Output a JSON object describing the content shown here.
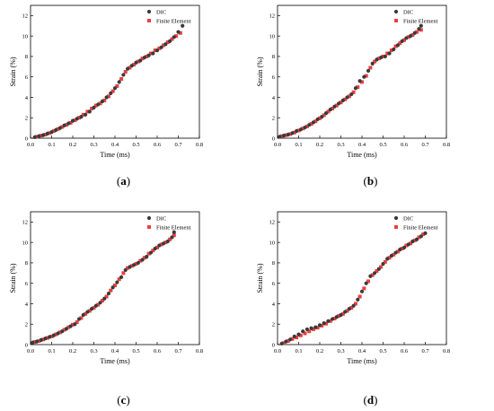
{
  "colors": {
    "dic": "#3a3a3a",
    "fe": "#e8403f"
  },
  "chart_data": [
    {
      "type": "scatter",
      "caption": "a",
      "xlabel": "Time (ms)",
      "ylabel": "Strain (%)",
      "xlim": [
        0,
        0.8
      ],
      "ylim": [
        0,
        13
      ],
      "xticks": [
        "0.0",
        "0.1",
        "0.2",
        "0.3",
        "0.4",
        "0.5",
        "0.6",
        "0.7",
        "0.8"
      ],
      "yticks": [
        "0",
        "2",
        "4",
        "6",
        "8",
        "10",
        "12"
      ],
      "legend": "top-right",
      "series": [
        {
          "name": "DIC",
          "marker": "circle",
          "x": [
            0.02,
            0.04,
            0.06,
            0.08,
            0.1,
            0.12,
            0.14,
            0.16,
            0.18,
            0.2,
            0.22,
            0.24,
            0.26,
            0.28,
            0.3,
            0.32,
            0.34,
            0.36,
            0.38,
            0.4,
            0.42,
            0.44,
            0.46,
            0.48,
            0.5,
            0.52,
            0.54,
            0.56,
            0.58,
            0.6,
            0.62,
            0.64,
            0.66,
            0.68,
            0.7,
            0.72
          ],
          "y": [
            0.1,
            0.2,
            0.3,
            0.45,
            0.6,
            0.8,
            1.0,
            1.25,
            1.45,
            1.7,
            1.9,
            2.1,
            2.3,
            2.6,
            3.0,
            3.3,
            3.6,
            4.0,
            4.4,
            4.9,
            5.5,
            6.2,
            6.8,
            7.1,
            7.4,
            7.6,
            7.9,
            8.1,
            8.3,
            8.6,
            8.9,
            9.2,
            9.5,
            9.9,
            10.4,
            11.0
          ]
        },
        {
          "name": "Finite Element",
          "marker": "square",
          "x": [
            0.03,
            0.05,
            0.07,
            0.09,
            0.11,
            0.13,
            0.15,
            0.17,
            0.19,
            0.21,
            0.23,
            0.25,
            0.27,
            0.29,
            0.31,
            0.33,
            0.35,
            0.37,
            0.39,
            0.41,
            0.43,
            0.45,
            0.47,
            0.49,
            0.51,
            0.53,
            0.55,
            0.57,
            0.59,
            0.61,
            0.63,
            0.65,
            0.67,
            0.69,
            0.71
          ],
          "y": [
            0.15,
            0.25,
            0.35,
            0.5,
            0.7,
            0.9,
            1.1,
            1.3,
            1.5,
            1.75,
            2.0,
            2.3,
            2.6,
            2.9,
            3.2,
            3.4,
            3.7,
            4.1,
            4.6,
            5.1,
            5.8,
            6.5,
            6.9,
            7.2,
            7.5,
            7.8,
            8.0,
            8.3,
            8.6,
            8.8,
            9.1,
            9.4,
            9.7,
            10.0,
            10.3
          ]
        }
      ]
    },
    {
      "type": "scatter",
      "caption": "b",
      "xlabel": "Time (ms)",
      "ylabel": "Strain (%)",
      "xlim": [
        0,
        0.8
      ],
      "ylim": [
        0,
        13
      ],
      "xticks": [
        "0.0",
        "0.1",
        "0.2",
        "0.3",
        "0.4",
        "0.5",
        "0.6",
        "0.7",
        "0.8"
      ],
      "yticks": [
        "0",
        "2",
        "4",
        "6",
        "8",
        "10",
        "12"
      ],
      "legend": "top-right",
      "series": [
        {
          "name": "DIC",
          "marker": "circle",
          "x": [
            0.01,
            0.03,
            0.05,
            0.07,
            0.09,
            0.11,
            0.13,
            0.15,
            0.17,
            0.19,
            0.21,
            0.23,
            0.25,
            0.27,
            0.29,
            0.31,
            0.33,
            0.35,
            0.37,
            0.39,
            0.41,
            0.43,
            0.45,
            0.47,
            0.49,
            0.51,
            0.53,
            0.55,
            0.57,
            0.59,
            0.61,
            0.63,
            0.65,
            0.67,
            0.68
          ],
          "y": [
            0.15,
            0.25,
            0.35,
            0.5,
            0.7,
            0.85,
            1.05,
            1.3,
            1.55,
            1.85,
            2.1,
            2.45,
            2.8,
            3.1,
            3.4,
            3.7,
            4.0,
            4.3,
            4.9,
            5.6,
            6.0,
            6.6,
            7.3,
            7.7,
            7.9,
            8.0,
            8.3,
            8.7,
            9.1,
            9.5,
            9.8,
            10.0,
            10.3,
            10.7,
            11.0
          ]
        },
        {
          "name": "Finite Element",
          "marker": "square",
          "x": [
            0.02,
            0.04,
            0.06,
            0.08,
            0.1,
            0.12,
            0.14,
            0.16,
            0.18,
            0.2,
            0.22,
            0.24,
            0.26,
            0.28,
            0.3,
            0.32,
            0.34,
            0.36,
            0.38,
            0.4,
            0.42,
            0.44,
            0.46,
            0.48,
            0.5,
            0.52,
            0.54,
            0.56,
            0.58,
            0.6,
            0.62,
            0.64,
            0.66,
            0.68
          ],
          "y": [
            0.2,
            0.3,
            0.4,
            0.55,
            0.75,
            0.95,
            1.15,
            1.4,
            1.65,
            1.95,
            2.25,
            2.6,
            2.9,
            3.2,
            3.5,
            3.8,
            4.1,
            4.5,
            5.0,
            5.5,
            6.1,
            6.9,
            7.5,
            7.8,
            8.0,
            8.3,
            8.6,
            9.0,
            9.3,
            9.6,
            9.9,
            10.1,
            10.4,
            10.6
          ]
        }
      ]
    },
    {
      "type": "scatter",
      "caption": "c",
      "xlabel": "Time (ms)",
      "ylabel": "Strain (%)",
      "xlim": [
        0,
        0.8
      ],
      "ylim": [
        0,
        13
      ],
      "xticks": [
        "0.0",
        "0.1",
        "0.2",
        "0.3",
        "0.4",
        "0.5",
        "0.6",
        "0.7",
        "0.8"
      ],
      "yticks": [
        "0",
        "2",
        "4",
        "6",
        "8",
        "10",
        "12"
      ],
      "legend": "top-right",
      "series": [
        {
          "name": "DIC",
          "marker": "circle",
          "x": [
            0.01,
            0.03,
            0.05,
            0.07,
            0.09,
            0.11,
            0.13,
            0.15,
            0.17,
            0.19,
            0.21,
            0.23,
            0.25,
            0.27,
            0.29,
            0.31,
            0.33,
            0.35,
            0.37,
            0.39,
            0.41,
            0.43,
            0.45,
            0.47,
            0.49,
            0.51,
            0.53,
            0.55,
            0.57,
            0.59,
            0.61,
            0.63,
            0.65,
            0.67,
            0.68
          ],
          "y": [
            0.2,
            0.3,
            0.45,
            0.6,
            0.75,
            0.9,
            1.1,
            1.3,
            1.55,
            1.8,
            2.0,
            2.5,
            2.9,
            3.2,
            3.5,
            3.8,
            4.1,
            4.5,
            5.0,
            5.6,
            6.1,
            6.6,
            7.3,
            7.6,
            7.8,
            8.0,
            8.3,
            8.6,
            9.0,
            9.4,
            9.7,
            9.9,
            10.1,
            10.5,
            11.0
          ]
        },
        {
          "name": "Finite Element",
          "marker": "square",
          "x": [
            0.02,
            0.04,
            0.06,
            0.08,
            0.1,
            0.12,
            0.14,
            0.16,
            0.18,
            0.2,
            0.22,
            0.24,
            0.26,
            0.28,
            0.3,
            0.32,
            0.34,
            0.36,
            0.38,
            0.4,
            0.42,
            0.44,
            0.46,
            0.48,
            0.5,
            0.52,
            0.54,
            0.56,
            0.58,
            0.6,
            0.62,
            0.64,
            0.66,
            0.68
          ],
          "y": [
            0.25,
            0.35,
            0.5,
            0.65,
            0.8,
            1.0,
            1.2,
            1.45,
            1.7,
            1.95,
            2.2,
            2.6,
            3.0,
            3.3,
            3.6,
            3.9,
            4.3,
            4.7,
            5.3,
            5.8,
            6.4,
            7.0,
            7.5,
            7.7,
            7.9,
            8.2,
            8.5,
            8.9,
            9.2,
            9.5,
            9.8,
            10.0,
            10.3,
            10.7
          ]
        }
      ]
    },
    {
      "type": "scatter",
      "caption": "d",
      "xlabel": "Time (ms)",
      "ylabel": "Strain (%)",
      "xlim": [
        0,
        0.8
      ],
      "ylim": [
        0,
        13
      ],
      "xticks": [
        "0.0",
        "0.1",
        "0.2",
        "0.3",
        "0.4",
        "0.5",
        "0.6",
        "0.7",
        "0.8"
      ],
      "yticks": [
        "0",
        "2",
        "4",
        "6",
        "8",
        "10",
        "12"
      ],
      "legend": "top-right",
      "series": [
        {
          "name": "DIC",
          "marker": "circle",
          "x": [
            0.02,
            0.04,
            0.06,
            0.08,
            0.1,
            0.12,
            0.14,
            0.16,
            0.18,
            0.2,
            0.22,
            0.24,
            0.26,
            0.28,
            0.3,
            0.32,
            0.34,
            0.36,
            0.38,
            0.4,
            0.42,
            0.44,
            0.46,
            0.48,
            0.5,
            0.52,
            0.54,
            0.56,
            0.58,
            0.6,
            0.62,
            0.64,
            0.66,
            0.68,
            0.7
          ],
          "y": [
            0.1,
            0.3,
            0.5,
            0.8,
            1.0,
            1.3,
            1.5,
            1.6,
            1.7,
            1.9,
            2.1,
            2.3,
            2.5,
            2.7,
            2.9,
            3.2,
            3.5,
            3.8,
            4.4,
            5.2,
            6.0,
            6.7,
            7.0,
            7.4,
            7.9,
            8.4,
            8.7,
            9.0,
            9.3,
            9.5,
            9.8,
            10.1,
            10.3,
            10.6,
            10.9
          ]
        },
        {
          "name": "Finite Element",
          "marker": "square",
          "x": [
            0.03,
            0.05,
            0.07,
            0.09,
            0.11,
            0.13,
            0.15,
            0.17,
            0.19,
            0.21,
            0.23,
            0.25,
            0.27,
            0.29,
            0.31,
            0.33,
            0.35,
            0.37,
            0.39,
            0.41,
            0.43,
            0.45,
            0.47,
            0.49,
            0.51,
            0.53,
            0.55,
            0.57,
            0.59,
            0.61,
            0.63,
            0.65,
            0.67,
            0.69
          ],
          "y": [
            0.15,
            0.35,
            0.55,
            0.7,
            0.9,
            1.1,
            1.3,
            1.5,
            1.65,
            1.85,
            2.05,
            2.3,
            2.55,
            2.8,
            3.0,
            3.3,
            3.6,
            4.0,
            4.7,
            5.5,
            6.2,
            6.8,
            7.2,
            7.6,
            8.1,
            8.5,
            8.8,
            9.1,
            9.4,
            9.7,
            9.9,
            10.2,
            10.5,
            10.8
          ]
        }
      ]
    }
  ]
}
